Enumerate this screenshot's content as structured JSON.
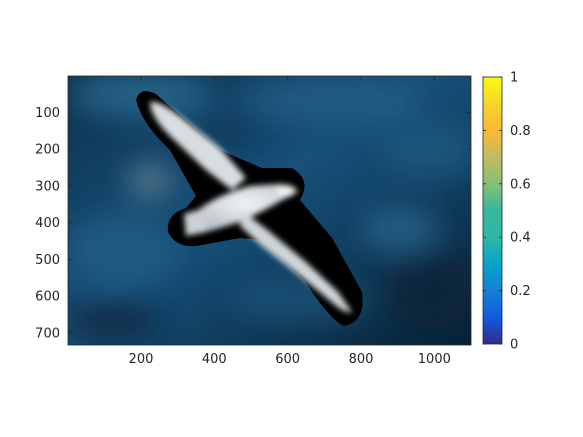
{
  "chart_data": {
    "type": "heatmap",
    "description_of_content": "",
    "image": {
      "xlim": [
        1,
        1100
      ],
      "ylim": [
        1,
        733
      ],
      "y_direction": "reversed",
      "x_ticks": [
        200,
        400,
        600,
        800,
        1000
      ],
      "y_ticks": [
        100,
        200,
        300,
        400,
        500,
        600,
        700
      ],
      "x_tick_labels": [
        "200",
        "400",
        "600",
        "800",
        "1000"
      ],
      "y_tick_labels": [
        "100",
        "200",
        "300",
        "400",
        "500",
        "600",
        "700"
      ],
      "title": "",
      "xlabel": "",
      "ylabel": ""
    },
    "colorbar": {
      "colormap": "parula",
      "range": [
        0,
        1
      ],
      "ticks": [
        0,
        0.2,
        0.4,
        0.6,
        0.8,
        1
      ],
      "tick_labels": [
        "0",
        "0.2",
        "0.4",
        "0.6",
        "0.8",
        "1"
      ],
      "location": "right"
    },
    "colors": {
      "background_dark": "#0a2a44",
      "background_mid": "#1b5a80",
      "background_light": "#3a7fa6",
      "bird_white": "#e9ecef",
      "bird_shadow": "#9aa9b3",
      "mask_outline": "#000000"
    }
  }
}
